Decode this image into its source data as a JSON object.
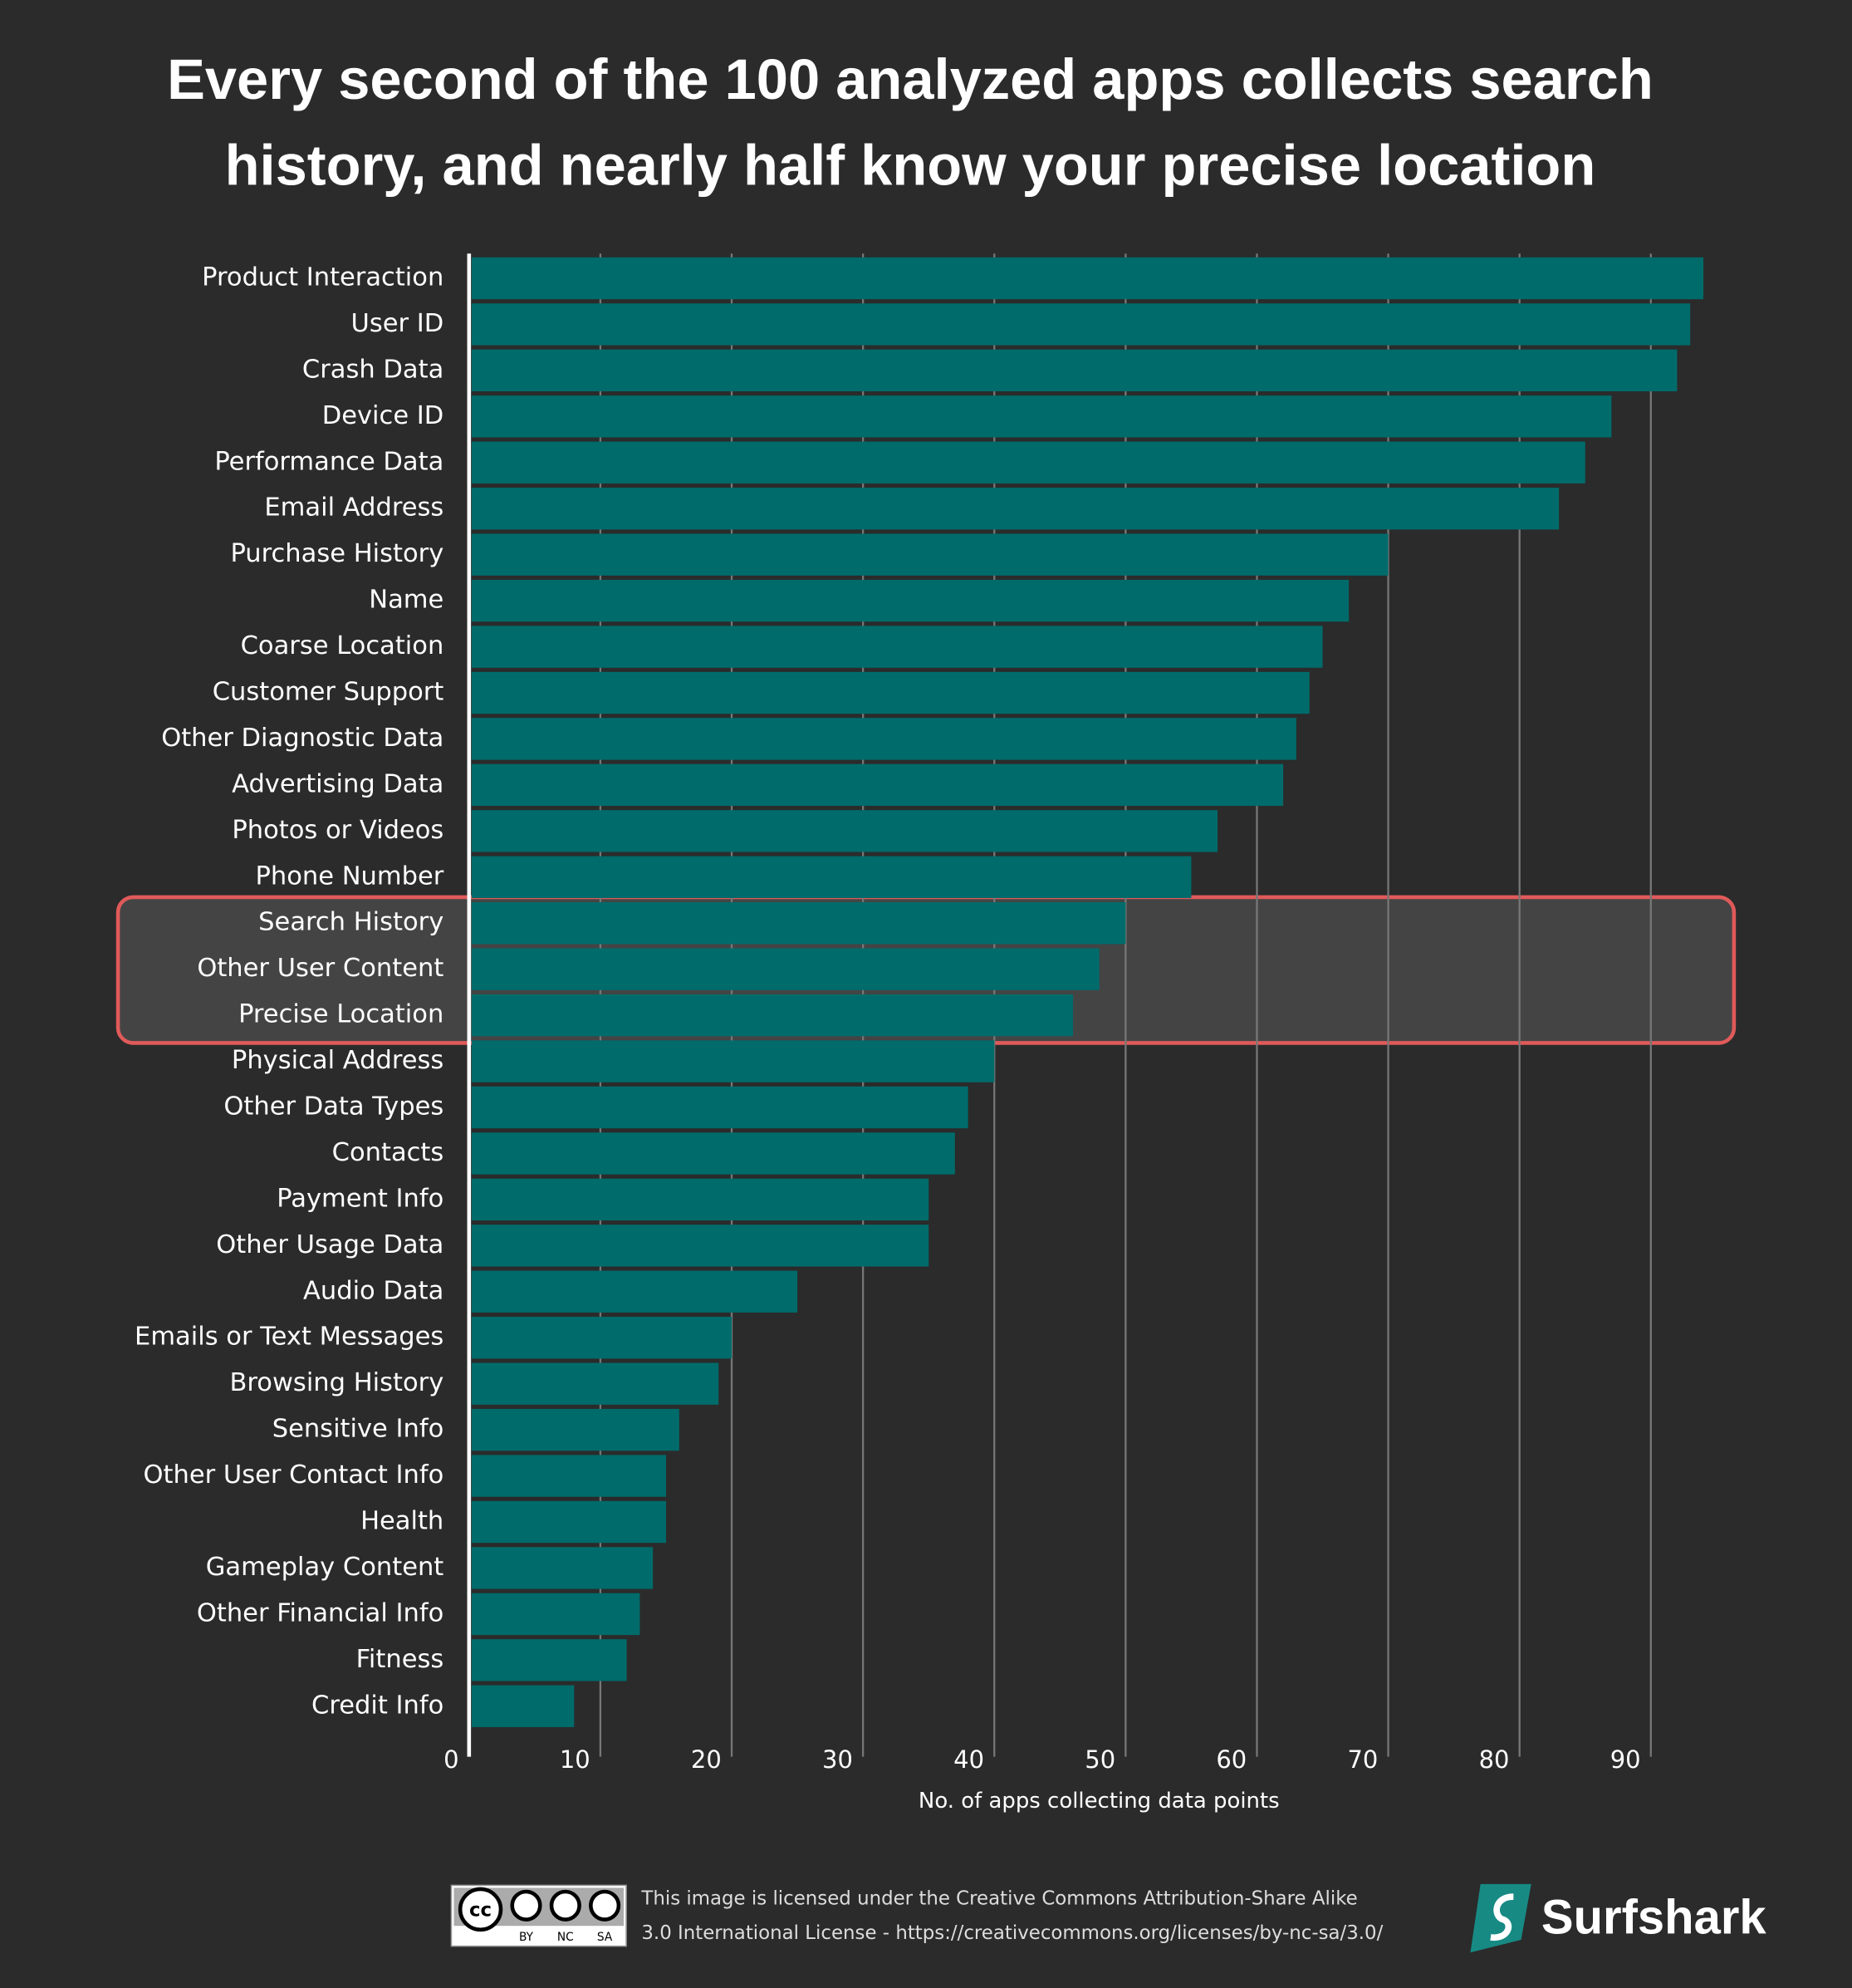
{
  "chart_data": {
    "type": "bar",
    "orientation": "horizontal",
    "title": [
      "Every second of the 100 analyzed apps collects search",
      "history, and nearly half know your precise location"
    ],
    "categories": [
      "Product Interaction",
      "User ID",
      "Crash Data",
      "Device ID",
      "Performance Data",
      "Email Address",
      "Purchase History",
      "Name",
      "Coarse Location",
      "Customer Support",
      "Other Diagnostic Data",
      "Advertising Data",
      "Photos or Videos",
      "Phone Number",
      "Search History",
      "Other User Content",
      "Precise Location",
      "Physical Address",
      "Other Data Types",
      "Contacts",
      "Payment Info",
      "Other Usage Data",
      "Audio Data",
      "Emails or Text Messages",
      "Browsing History",
      "Sensitive Info",
      "Other User Contact Info",
      "Health",
      "Gameplay Content",
      "Other Financial Info",
      "Fitness",
      "Credit Info"
    ],
    "values": [
      94,
      93,
      92,
      87,
      85,
      83,
      70,
      67,
      65,
      64,
      63,
      62,
      57,
      55,
      50,
      48,
      46,
      40,
      38,
      37,
      35,
      35,
      25,
      20,
      19,
      16,
      15,
      15,
      14,
      13,
      12,
      8
    ],
    "color": "#006b6b",
    "xlim": [
      0,
      100
    ],
    "xticks": [
      0,
      10,
      20,
      30,
      40,
      50,
      60,
      70,
      80,
      90
    ],
    "xlabel": "No. of apps collecting data points",
    "grid": true,
    "highlight_rows": [
      14,
      16
    ]
  },
  "footer": {
    "cc": "cc",
    "by": "BY",
    "nc": "NC",
    "sa": "SA",
    "license_line1": "This image is licensed under the Creative Commons Attribution-Share Alike",
    "license_line2": "3.0 International License - https://creativecommons.org/licenses/by-nc-sa/3.0/",
    "brand": "Surfshark"
  }
}
